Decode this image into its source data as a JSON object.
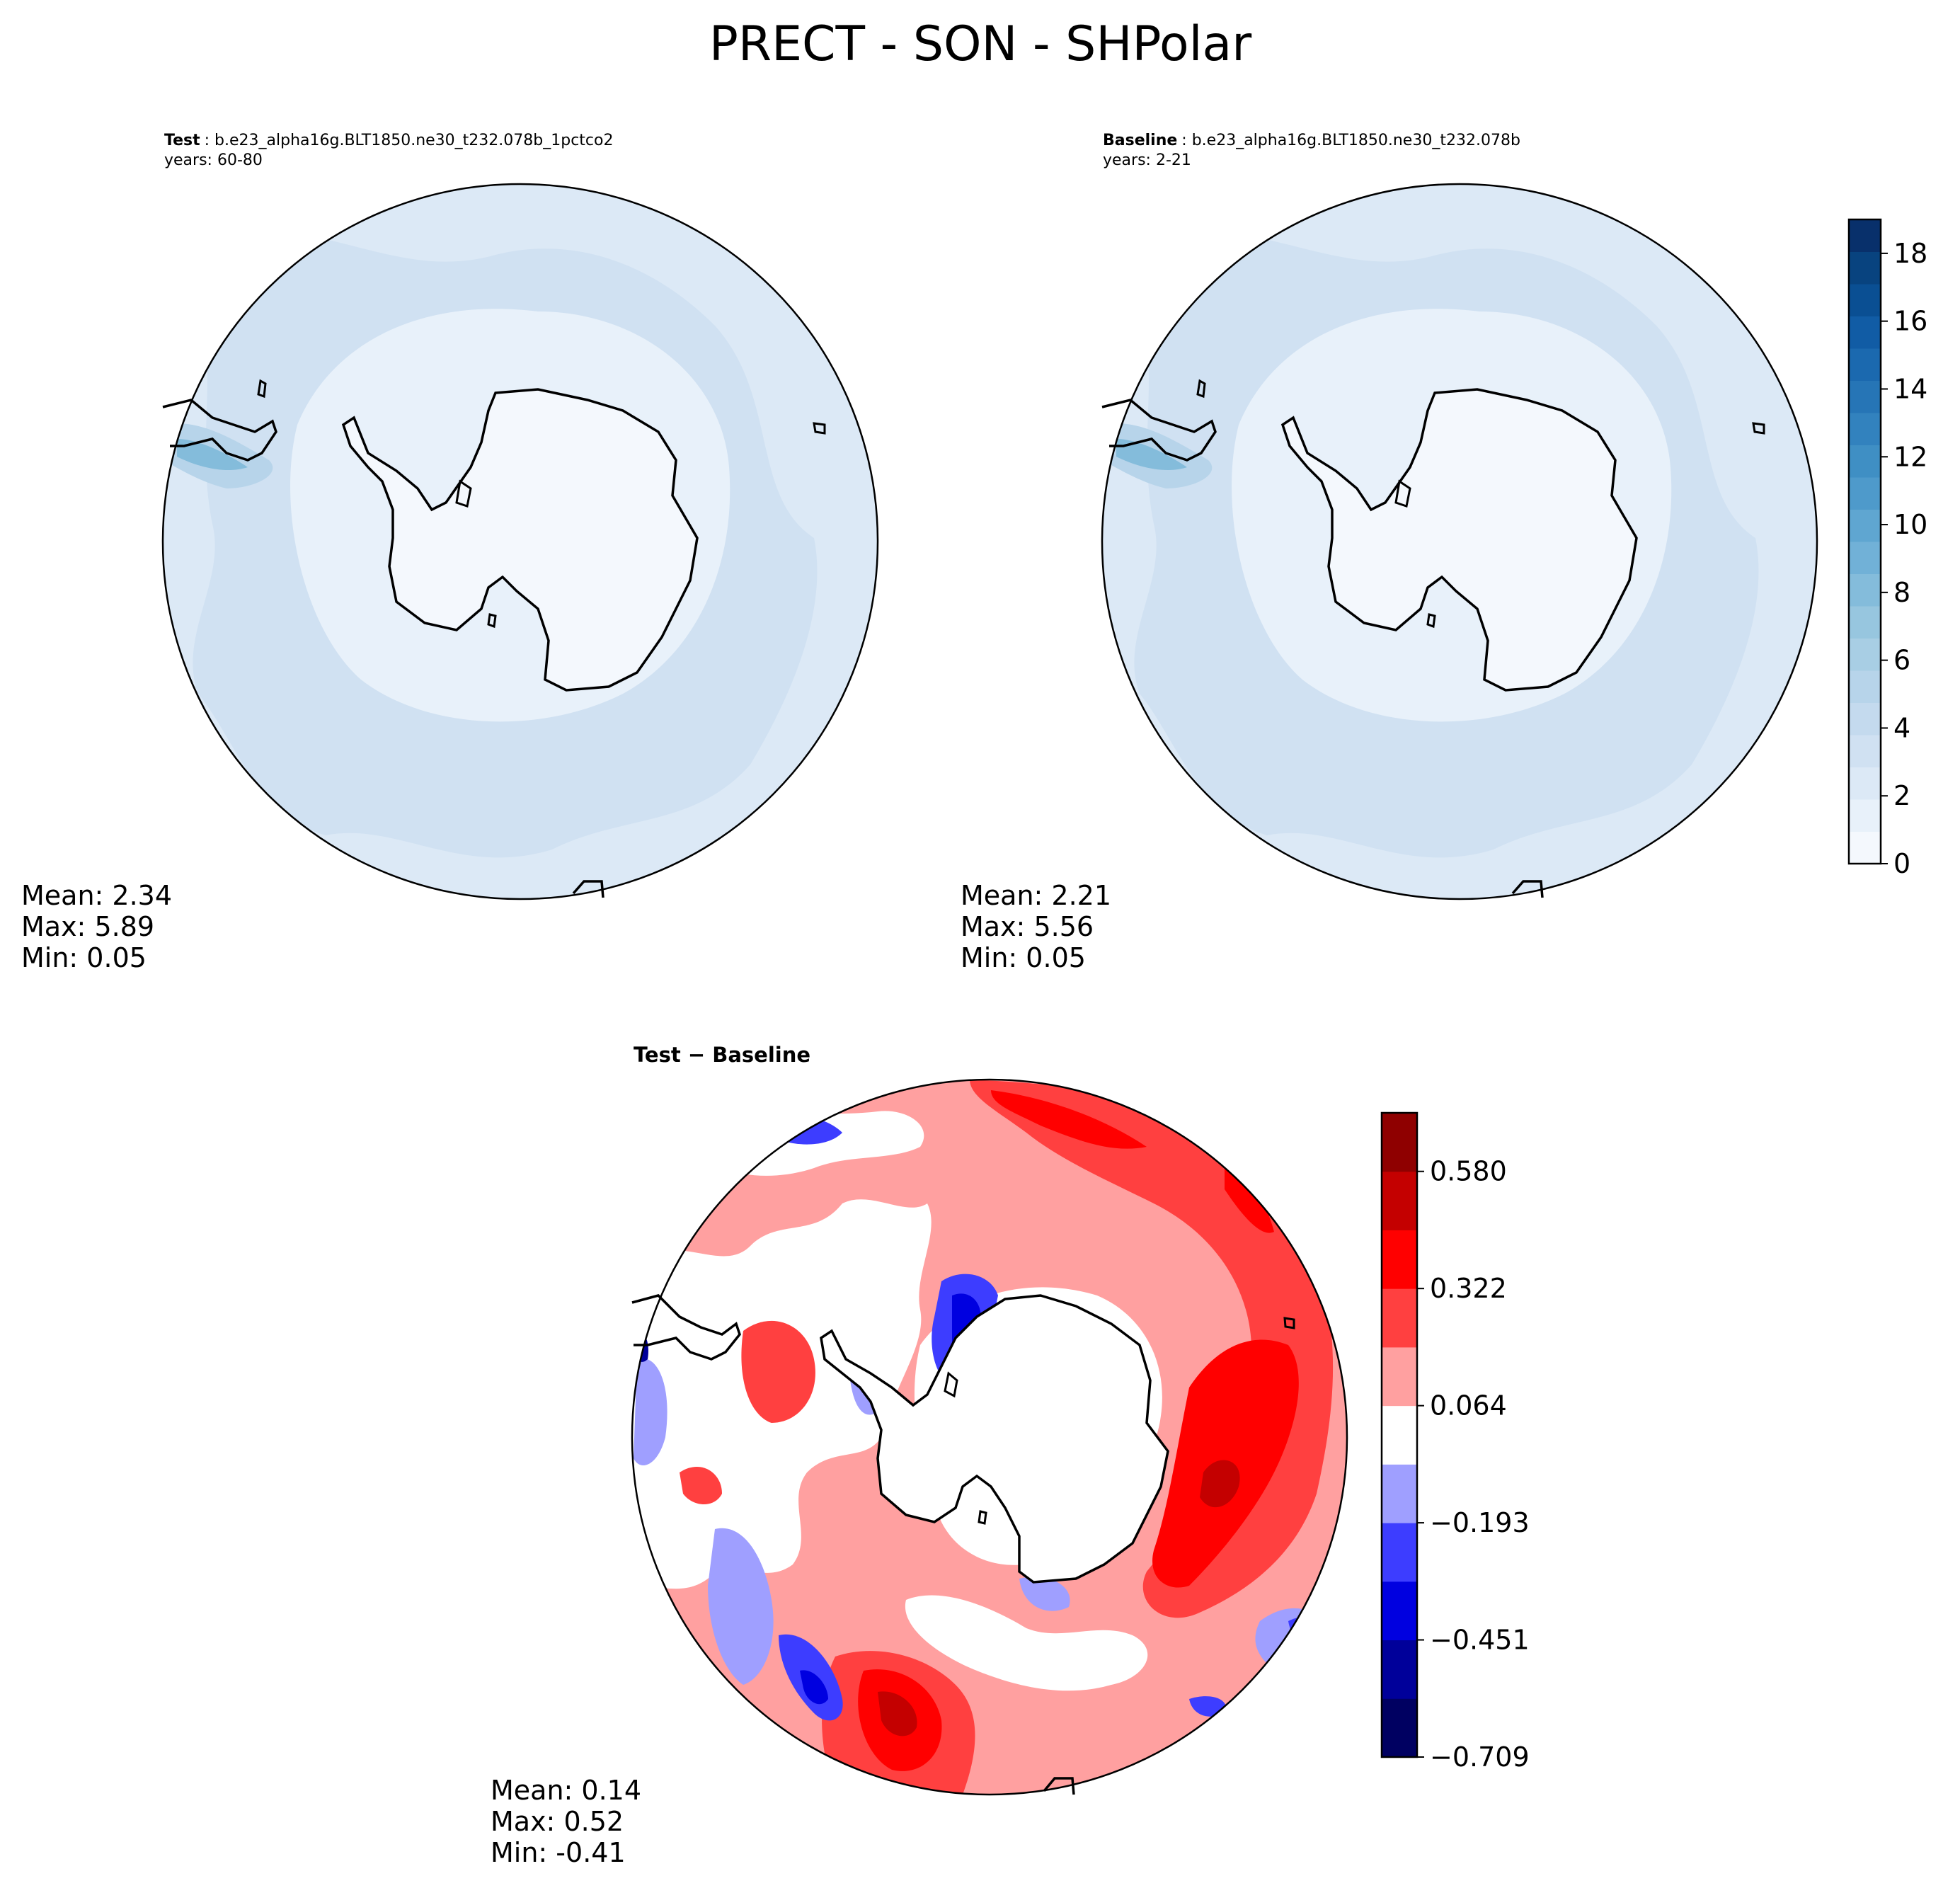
{
  "figure": {
    "title": "PRECT - SON - SHPolar"
  },
  "panels": {
    "test": {
      "label": "Test",
      "case": ": b.e23_alpha16g.BLT1850.ne30_t232.078b_1pctco2",
      "years": "years: 60-80",
      "stats": {
        "mean": "Mean:  2.34",
        "max": "Max:  5.89",
        "min": "Min:  0.05"
      }
    },
    "baseline": {
      "label": "Baseline",
      "case": ": b.e23_alpha16g.BLT1850.ne30_t232.078b",
      "years": "years: 2-21",
      "stats": {
        "mean": "Mean:  2.21",
        "max": "Max:  5.56",
        "min": "Min:  0.05"
      }
    },
    "diff": {
      "label": "Test − Baseline",
      "stats": {
        "mean": "Mean:  0.14",
        "max": "Max:  0.52",
        "min": "Min: -0.41"
      }
    }
  },
  "colorbars": {
    "blues": {
      "ticks": [
        "0",
        "2",
        "4",
        "6",
        "8",
        "10",
        "12",
        "14",
        "16",
        "18"
      ],
      "colors": [
        "#f4f8fd",
        "#e8f1fa",
        "#dce9f6",
        "#d0e1f2",
        "#c4daee",
        "#b7d4ea",
        "#a8cee4",
        "#97c6df",
        "#84bcdb",
        "#71b1d7",
        "#5fa6d1",
        "#4e9acb",
        "#3f8fc4",
        "#3282be",
        "#2675b6",
        "#1b69af",
        "#115ca5",
        "#0a4f93",
        "#08437f",
        "#08306b"
      ],
      "range": [
        0,
        19
      ]
    },
    "diverging": {
      "ticks": [
        "0.580",
        "0.322",
        "0.064",
        "−0.193",
        "−0.451",
        "−0.709"
      ],
      "colors": [
        "#000061",
        "#00009a",
        "#0000e0",
        "#3d3dff",
        "#9f9fff",
        "#ffffff",
        "#ffa0a0",
        "#ff4040",
        "#ff0000",
        "#c40000",
        "#8f0000"
      ]
    }
  },
  "chart_data": [
    {
      "type": "heatmap",
      "title": "Test : b.e23_alpha16g.BLT1850.ne30_t232.078b_1pctco2",
      "projection": "south polar stereographic",
      "stats": {
        "mean": 2.34,
        "max": 5.89,
        "min": 0.05
      },
      "colorbar_range": [
        0,
        19
      ]
    },
    {
      "type": "heatmap",
      "title": "Baseline : b.e23_alpha16g.BLT1850.ne30_t232.078b",
      "projection": "south polar stereographic",
      "stats": {
        "mean": 2.21,
        "max": 5.56,
        "min": 0.05
      },
      "colorbar_range": [
        0,
        19
      ]
    },
    {
      "type": "heatmap",
      "title": "Test − Baseline",
      "projection": "south polar stereographic",
      "stats": {
        "mean": 0.14,
        "max": 0.52,
        "min": -0.41
      },
      "colorbar_levels": [
        -0.709,
        -0.451,
        -0.193,
        0.064,
        0.322,
        0.58
      ]
    }
  ]
}
